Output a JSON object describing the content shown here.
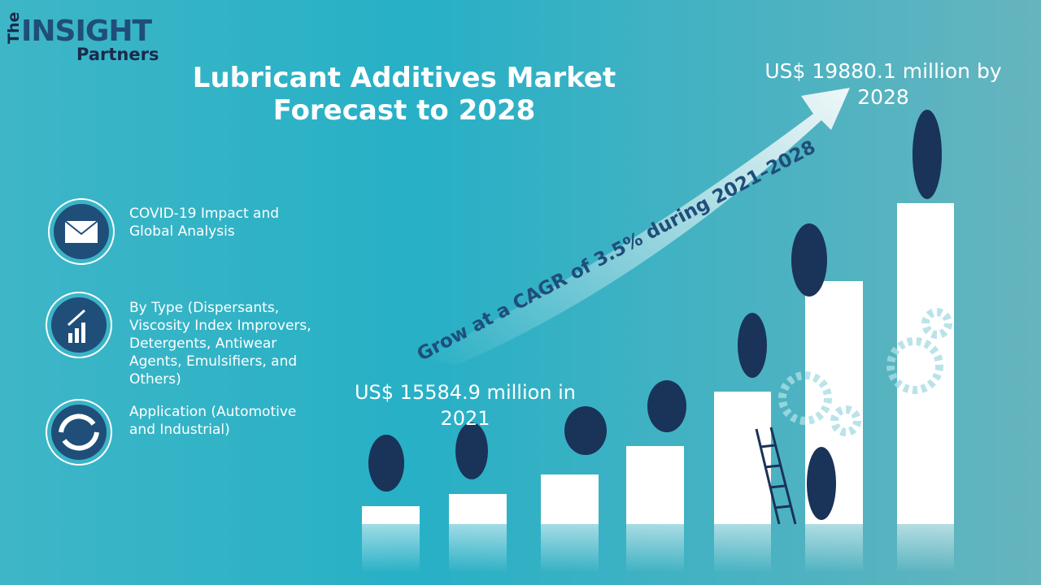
{
  "logo": {
    "prefix": "The",
    "name": "INSIGHT",
    "suffix": "Partners"
  },
  "title": "Lubricant Additives Market Forecast to 2028",
  "start_value": "US$ 15584.9 million in 2021",
  "end_value": "US$ 19880.1 million by 2028",
  "cagr": "Grow at a CAGR of 3.5% during 2021–2028",
  "items": [
    "COVID-19 Impact and Global Analysis",
    "By Type (Dispersants, Viscosity Index Improvers, Detergents, Antiwear Agents, Emulsifiers, and Others)",
    "Application (Automotive and Industrial)"
  ]
}
